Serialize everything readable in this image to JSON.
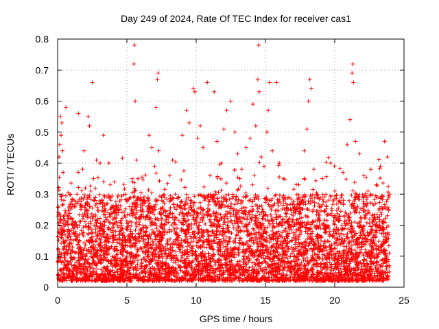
{
  "chart_data": {
    "type": "scatter",
    "title": "Day 249 of 2024, Rate Of TEC Index for receiver cas1",
    "xlabel": "GPS time / hours",
    "ylabel": "ROTI / TECUs",
    "xlim": [
      0,
      25
    ],
    "ylim": [
      0,
      0.8
    ],
    "x_ticks": [
      "0",
      "5",
      "10",
      "15",
      "20",
      "25"
    ],
    "y_ticks": [
      "0",
      "0.1",
      "0.2",
      "0.3",
      "0.4",
      "0.5",
      "0.6",
      "0.7",
      "0.8"
    ],
    "grid": true,
    "marker": "+",
    "color": "#ff0000",
    "series": [
      {
        "name": "ROTI",
        "points": [
          [
            0.05,
            0.04
          ],
          [
            0.1,
            0.42
          ],
          [
            0.15,
            0.46
          ],
          [
            0.2,
            0.55
          ],
          [
            0.25,
            0.49
          ],
          [
            0.3,
            0.53
          ],
          [
            0.35,
            0.44
          ],
          [
            0.4,
            0.37
          ],
          [
            0.45,
            0.28
          ],
          [
            0.5,
            0.22
          ],
          [
            0.55,
            0.15
          ],
          [
            0.6,
            0.58
          ],
          [
            0.7,
            0.18
          ],
          [
            0.8,
            0.12
          ],
          [
            0.9,
            0.08
          ],
          [
            1.0,
            0.14
          ],
          [
            1.1,
            0.2
          ],
          [
            1.2,
            0.26
          ],
          [
            1.3,
            0.21
          ],
          [
            1.4,
            0.3
          ],
          [
            1.5,
            0.56
          ],
          [
            1.6,
            0.17
          ],
          [
            1.7,
            0.11
          ],
          [
            1.8,
            0.38
          ],
          [
            1.9,
            0.44
          ],
          [
            2.0,
            0.32
          ],
          [
            2.1,
            0.27
          ],
          [
            2.2,
            0.55
          ],
          [
            2.3,
            0.52
          ],
          [
            2.4,
            0.31
          ],
          [
            2.5,
            0.66
          ],
          [
            2.6,
            0.35
          ],
          [
            2.7,
            0.29
          ],
          [
            2.8,
            0.41
          ],
          [
            2.9,
            0.22
          ],
          [
            3.0,
            0.18
          ],
          [
            3.1,
            0.12
          ],
          [
            3.2,
            0.09
          ],
          [
            3.3,
            0.49
          ],
          [
            3.4,
            0.21
          ],
          [
            3.5,
            0.15
          ],
          [
            3.7,
            0.4
          ],
          [
            3.8,
            0.33
          ],
          [
            3.9,
            0.13
          ],
          [
            4.0,
            0.19
          ],
          [
            4.2,
            0.07
          ],
          [
            4.4,
            0.24
          ],
          [
            4.6,
            0.2
          ],
          [
            4.8,
            0.16
          ],
          [
            5.0,
            0.1
          ],
          [
            5.2,
            0.26
          ],
          [
            5.4,
            0.34
          ],
          [
            5.5,
            0.72
          ],
          [
            5.55,
            0.78
          ],
          [
            5.6,
            0.6
          ],
          [
            5.7,
            0.41
          ],
          [
            5.8,
            0.35
          ],
          [
            6.0,
            0.22
          ],
          [
            6.2,
            0.28
          ],
          [
            6.4,
            0.18
          ],
          [
            6.6,
            0.49
          ],
          [
            6.8,
            0.45
          ],
          [
            7.0,
            0.39
          ],
          [
            7.1,
            0.58
          ],
          [
            7.2,
            0.67
          ],
          [
            7.25,
            0.69
          ],
          [
            7.3,
            0.44
          ],
          [
            7.5,
            0.29
          ],
          [
            7.7,
            0.2
          ],
          [
            7.9,
            0.14
          ],
          [
            8.1,
            0.36
          ],
          [
            8.3,
            0.41
          ],
          [
            8.5,
            0.3
          ],
          [
            8.8,
            0.26
          ],
          [
            9.0,
            0.49
          ],
          [
            9.3,
            0.57
          ],
          [
            9.5,
            0.53
          ],
          [
            9.8,
            0.64
          ],
          [
            9.9,
            0.63
          ],
          [
            10.1,
            0.48
          ],
          [
            10.3,
            0.52
          ],
          [
            10.5,
            0.45
          ],
          [
            10.8,
            0.66
          ],
          [
            11.0,
            0.36
          ],
          [
            11.3,
            0.63
          ],
          [
            11.5,
            0.47
          ],
          [
            11.8,
            0.4
          ],
          [
            12.0,
            0.51
          ],
          [
            12.2,
            0.57
          ],
          [
            12.5,
            0.6
          ],
          [
            12.8,
            0.5
          ],
          [
            13.0,
            0.43
          ],
          [
            13.3,
            0.38
          ],
          [
            13.6,
            0.45
          ],
          [
            13.9,
            0.48
          ],
          [
            14.1,
            0.59
          ],
          [
            14.3,
            0.52
          ],
          [
            14.45,
            0.67
          ],
          [
            14.5,
            0.78
          ],
          [
            14.55,
            0.63
          ],
          [
            14.7,
            0.42
          ],
          [
            14.9,
            0.39
          ],
          [
            15.1,
            0.5
          ],
          [
            15.2,
            0.57
          ],
          [
            15.3,
            0.66
          ],
          [
            15.5,
            0.44
          ],
          [
            15.8,
            0.66
          ],
          [
            16.0,
            0.4
          ],
          [
            16.3,
            0.35
          ],
          [
            16.7,
            0.29
          ],
          [
            17.0,
            0.23
          ],
          [
            17.4,
            0.33
          ],
          [
            17.8,
            0.44
          ],
          [
            18.0,
            0.51
          ],
          [
            18.1,
            0.6
          ],
          [
            18.2,
            0.67
          ],
          [
            18.3,
            0.64
          ],
          [
            18.5,
            0.38
          ],
          [
            18.8,
            0.29
          ],
          [
            19.1,
            0.35
          ],
          [
            19.4,
            0.26
          ],
          [
            19.7,
            0.4
          ],
          [
            20.0,
            0.31
          ],
          [
            20.3,
            0.22
          ],
          [
            20.6,
            0.37
          ],
          [
            20.9,
            0.46
          ],
          [
            21.1,
            0.54
          ],
          [
            21.25,
            0.69
          ],
          [
            21.3,
            0.72
          ],
          [
            21.35,
            0.66
          ],
          [
            21.5,
            0.47
          ],
          [
            21.8,
            0.43
          ],
          [
            22.1,
            0.36
          ],
          [
            22.4,
            0.31
          ],
          [
            22.7,
            0.27
          ],
          [
            23.0,
            0.33
          ],
          [
            23.3,
            0.39
          ],
          [
            23.6,
            0.47
          ],
          [
            23.8,
            0.42
          ],
          [
            23.95,
            0.3
          ]
        ]
      }
    ]
  }
}
